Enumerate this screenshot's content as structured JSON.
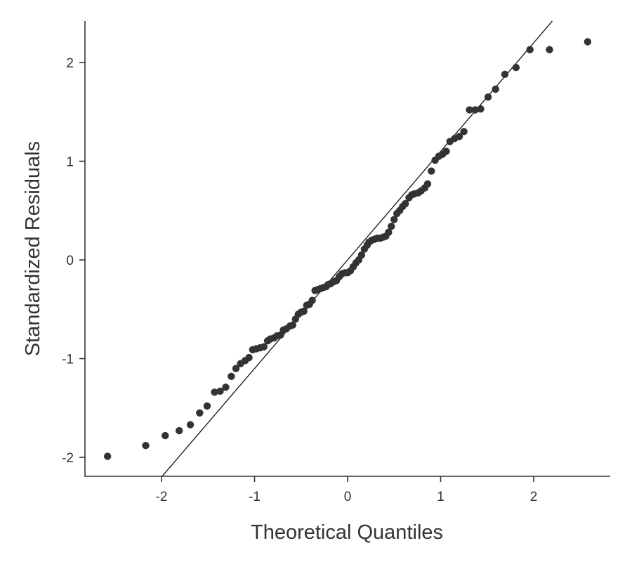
{
  "chart_data": {
    "type": "scatter",
    "title": "",
    "xlabel": "Theoretical Quantiles",
    "ylabel": "Standardized Residuals",
    "xlim": [
      -2.8,
      2.8
    ],
    "ylim": [
      -2.2,
      2.4
    ],
    "xticks": [
      -2,
      -1,
      0,
      1,
      2
    ],
    "yticks": [
      -2,
      -1,
      0,
      1,
      2
    ],
    "xtick_labels": [
      "-2",
      "-1",
      "0",
      "1",
      "2"
    ],
    "ytick_labels": [
      "-2",
      "-1",
      "0",
      "1",
      "2"
    ],
    "grid": false,
    "reference_line": {
      "slope": 1.1,
      "intercept": 0.0
    },
    "colors": {
      "points": "#333333",
      "line": "#222222",
      "axes": "#333333"
    },
    "series": [
      {
        "points": [
          [
            -2.58,
            -1.99
          ],
          [
            -2.17,
            -1.88
          ],
          [
            -1.96,
            -1.78
          ],
          [
            -1.81,
            -1.73
          ],
          [
            -1.69,
            -1.67
          ],
          [
            -1.59,
            -1.55
          ],
          [
            -1.51,
            -1.48
          ],
          [
            -1.43,
            -1.34
          ],
          [
            -1.37,
            -1.33
          ],
          [
            -1.31,
            -1.29
          ],
          [
            -1.25,
            -1.18
          ],
          [
            -1.2,
            -1.1
          ],
          [
            -1.15,
            -1.05
          ],
          [
            -1.1,
            -1.02
          ],
          [
            -1.06,
            -0.99
          ],
          [
            -1.02,
            -0.91
          ],
          [
            -0.98,
            -0.9
          ],
          [
            -0.94,
            -0.89
          ],
          [
            -0.9,
            -0.88
          ],
          [
            -0.86,
            -0.82
          ],
          [
            -0.83,
            -0.8
          ],
          [
            -0.79,
            -0.79
          ],
          [
            -0.76,
            -0.77
          ],
          [
            -0.72,
            -0.76
          ],
          [
            -0.69,
            -0.71
          ],
          [
            -0.66,
            -0.7
          ],
          [
            -0.62,
            -0.67
          ],
          [
            -0.59,
            -0.66
          ],
          [
            -0.56,
            -0.6
          ],
          [
            -0.53,
            -0.55
          ],
          [
            -0.5,
            -0.53
          ],
          [
            -0.47,
            -0.52
          ],
          [
            -0.44,
            -0.46
          ],
          [
            -0.41,
            -0.45
          ],
          [
            -0.38,
            -0.41
          ],
          [
            -0.35,
            -0.31
          ],
          [
            -0.32,
            -0.3
          ],
          [
            -0.29,
            -0.29
          ],
          [
            -0.26,
            -0.28
          ],
          [
            -0.23,
            -0.27
          ],
          [
            -0.21,
            -0.25
          ],
          [
            -0.18,
            -0.24
          ],
          [
            -0.15,
            -0.22
          ],
          [
            -0.12,
            -0.21
          ],
          [
            -0.09,
            -0.17
          ],
          [
            -0.06,
            -0.14
          ],
          [
            -0.03,
            -0.13
          ],
          [
            0.0,
            -0.13
          ],
          [
            0.03,
            -0.11
          ],
          [
            0.06,
            -0.07
          ],
          [
            0.09,
            -0.03
          ],
          [
            0.12,
            0.0
          ],
          [
            0.15,
            0.05
          ],
          [
            0.18,
            0.11
          ],
          [
            0.21,
            0.15
          ],
          [
            0.23,
            0.18
          ],
          [
            0.26,
            0.2
          ],
          [
            0.29,
            0.21
          ],
          [
            0.32,
            0.22
          ],
          [
            0.35,
            0.22
          ],
          [
            0.38,
            0.23
          ],
          [
            0.41,
            0.24
          ],
          [
            0.44,
            0.28
          ],
          [
            0.47,
            0.34
          ],
          [
            0.5,
            0.41
          ],
          [
            0.53,
            0.47
          ],
          [
            0.56,
            0.5
          ],
          [
            0.59,
            0.54
          ],
          [
            0.62,
            0.57
          ],
          [
            0.66,
            0.63
          ],
          [
            0.69,
            0.66
          ],
          [
            0.72,
            0.67
          ],
          [
            0.76,
            0.68
          ],
          [
            0.79,
            0.7
          ],
          [
            0.83,
            0.73
          ],
          [
            0.86,
            0.77
          ],
          [
            0.9,
            0.9
          ],
          [
            0.94,
            1.01
          ],
          [
            0.98,
            1.05
          ],
          [
            1.02,
            1.07
          ],
          [
            1.06,
            1.1
          ],
          [
            1.1,
            1.2
          ],
          [
            1.15,
            1.23
          ],
          [
            1.2,
            1.25
          ],
          [
            1.25,
            1.3
          ],
          [
            1.31,
            1.52
          ],
          [
            1.37,
            1.52
          ],
          [
            1.43,
            1.53
          ],
          [
            1.51,
            1.65
          ],
          [
            1.59,
            1.73
          ],
          [
            1.69,
            1.88
          ],
          [
            1.81,
            1.95
          ],
          [
            1.96,
            2.13
          ],
          [
            2.17,
            2.13
          ],
          [
            2.58,
            2.21
          ]
        ]
      }
    ]
  }
}
